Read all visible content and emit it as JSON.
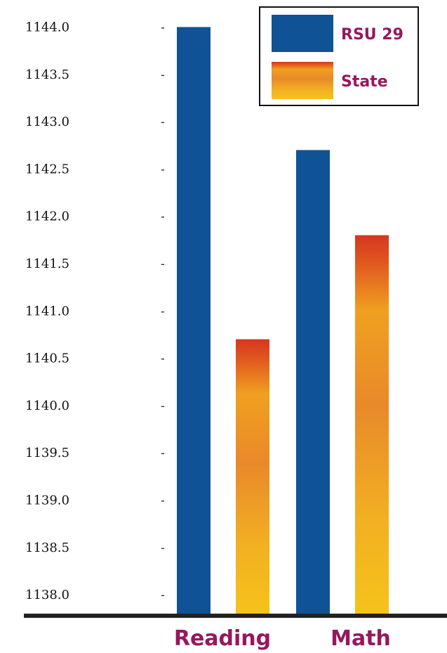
{
  "chart_data": {
    "type": "bar",
    "categories": [
      "Reading",
      "Math"
    ],
    "series": [
      {
        "name": "RSU 29",
        "values": [
          1144.0,
          1142.7
        ]
      },
      {
        "name": "State",
        "values": [
          1140.7,
          1141.8
        ]
      }
    ],
    "ylim": [
      1137.8,
      1144.1
    ],
    "yticks": [
      "1138.0",
      "1138.5",
      "1139.0",
      "1139.5",
      "1140.0",
      "1140.5",
      "1141.0",
      "1141.5",
      "1142.0",
      "1142.5",
      "1143.0",
      "1143.5",
      "1144.0"
    ],
    "tick_mark": "-",
    "legend_position": "top-right",
    "colors": {
      "rsu": "#0f5295",
      "state_top": "#d6361f",
      "state_mid": "#e98c2c",
      "state_bottom": "#f6c21b",
      "label": "#96185e",
      "axis": "#222222"
    }
  }
}
